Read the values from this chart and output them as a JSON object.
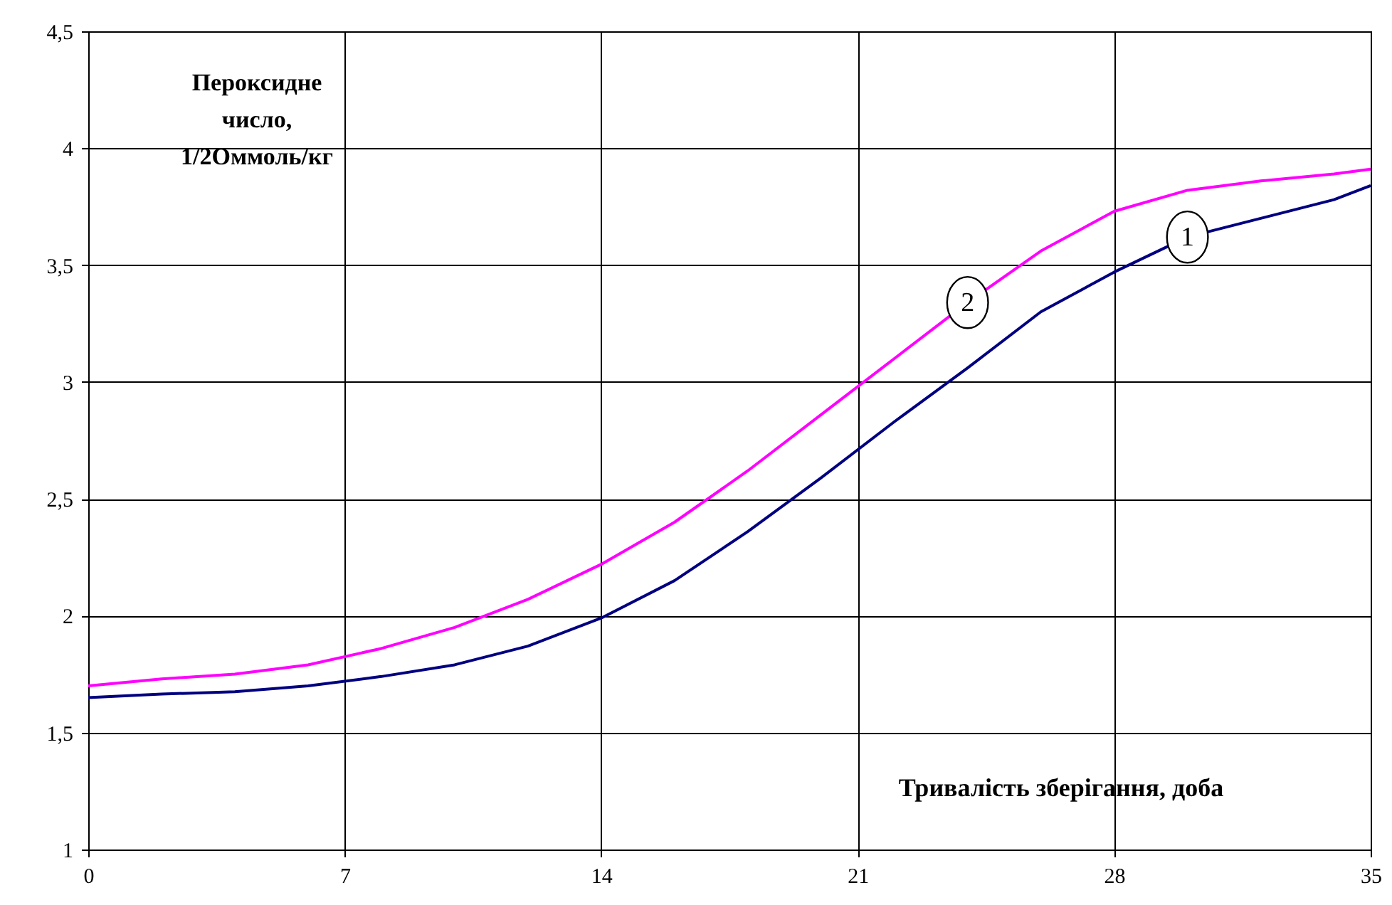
{
  "chart_data": {
    "type": "line",
    "xlabel": "Тривалість зберігання, доба",
    "ylabel": "Пероксидне число, 1/2Оммоль/кг",
    "x": [
      0,
      2,
      4,
      6,
      8,
      10,
      12,
      14,
      16,
      18,
      20,
      22,
      24,
      26,
      28,
      30,
      32,
      34,
      35
    ],
    "series": [
      {
        "name": "1",
        "color": "#000080",
        "values": [
          1.65,
          1.665,
          1.675,
          1.7,
          1.74,
          1.79,
          1.87,
          1.99,
          2.15,
          2.36,
          2.59,
          2.83,
          3.06,
          3.3,
          3.47,
          3.62,
          3.7,
          3.78,
          3.84
        ]
      },
      {
        "name": "2",
        "color": "#ff00ff",
        "values": [
          1.7,
          1.73,
          1.75,
          1.79,
          1.86,
          1.95,
          2.07,
          2.22,
          2.4,
          2.62,
          2.86,
          3.1,
          3.34,
          3.56,
          3.73,
          3.82,
          3.86,
          3.89,
          3.91
        ]
      }
    ],
    "xlim": [
      0,
      35
    ],
    "xticks": [
      0,
      7,
      14,
      21,
      28,
      35
    ],
    "ylim": [
      1,
      4.5
    ],
    "yticks": [
      1,
      {
        "value": 1.5,
        "label": "1,5"
      },
      2,
      {
        "value": 2.5,
        "label": "2,5"
      },
      3,
      {
        "value": 3.5,
        "label": "3,5"
      },
      4,
      {
        "value": 4.5,
        "label": "4,5"
      }
    ],
    "grid": true,
    "legend": false,
    "marker": "none",
    "line_style": "solid"
  }
}
